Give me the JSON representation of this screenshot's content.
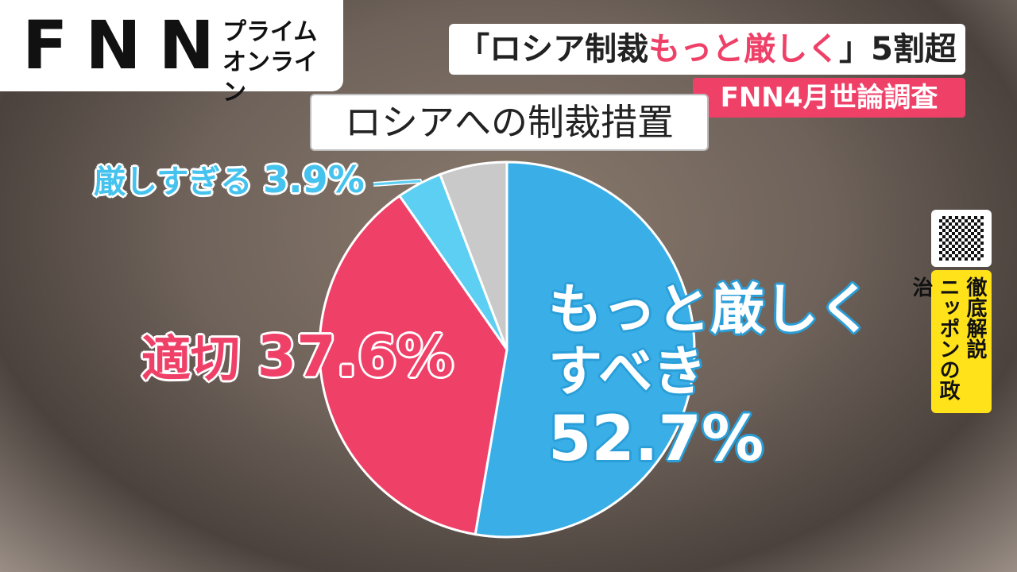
{
  "header": {
    "logo": "FNN",
    "service": "プライムオンライン",
    "headline": [
      "「ロシア制裁",
      "もっと厳しく",
      "」5割超"
    ],
    "source": "FNN4月世論調査"
  },
  "badge": [
    "徹底解説",
    "ニッポンの政治"
  ],
  "chart_data": {
    "type": "pie",
    "title": "ロシアへの制裁措置",
    "categories": [
      "もっと厳しくすべき",
      "適切",
      "厳しすぎる",
      null
    ],
    "values": [
      52.7,
      37.6,
      3.9,
      5.8
    ],
    "value_labels": [
      "52.7%",
      "37.6%",
      "3.9%",
      null
    ],
    "colors": [
      "#3aaee6",
      "#ef4068",
      "#5ccff2",
      "#c9c9c9"
    ]
  }
}
